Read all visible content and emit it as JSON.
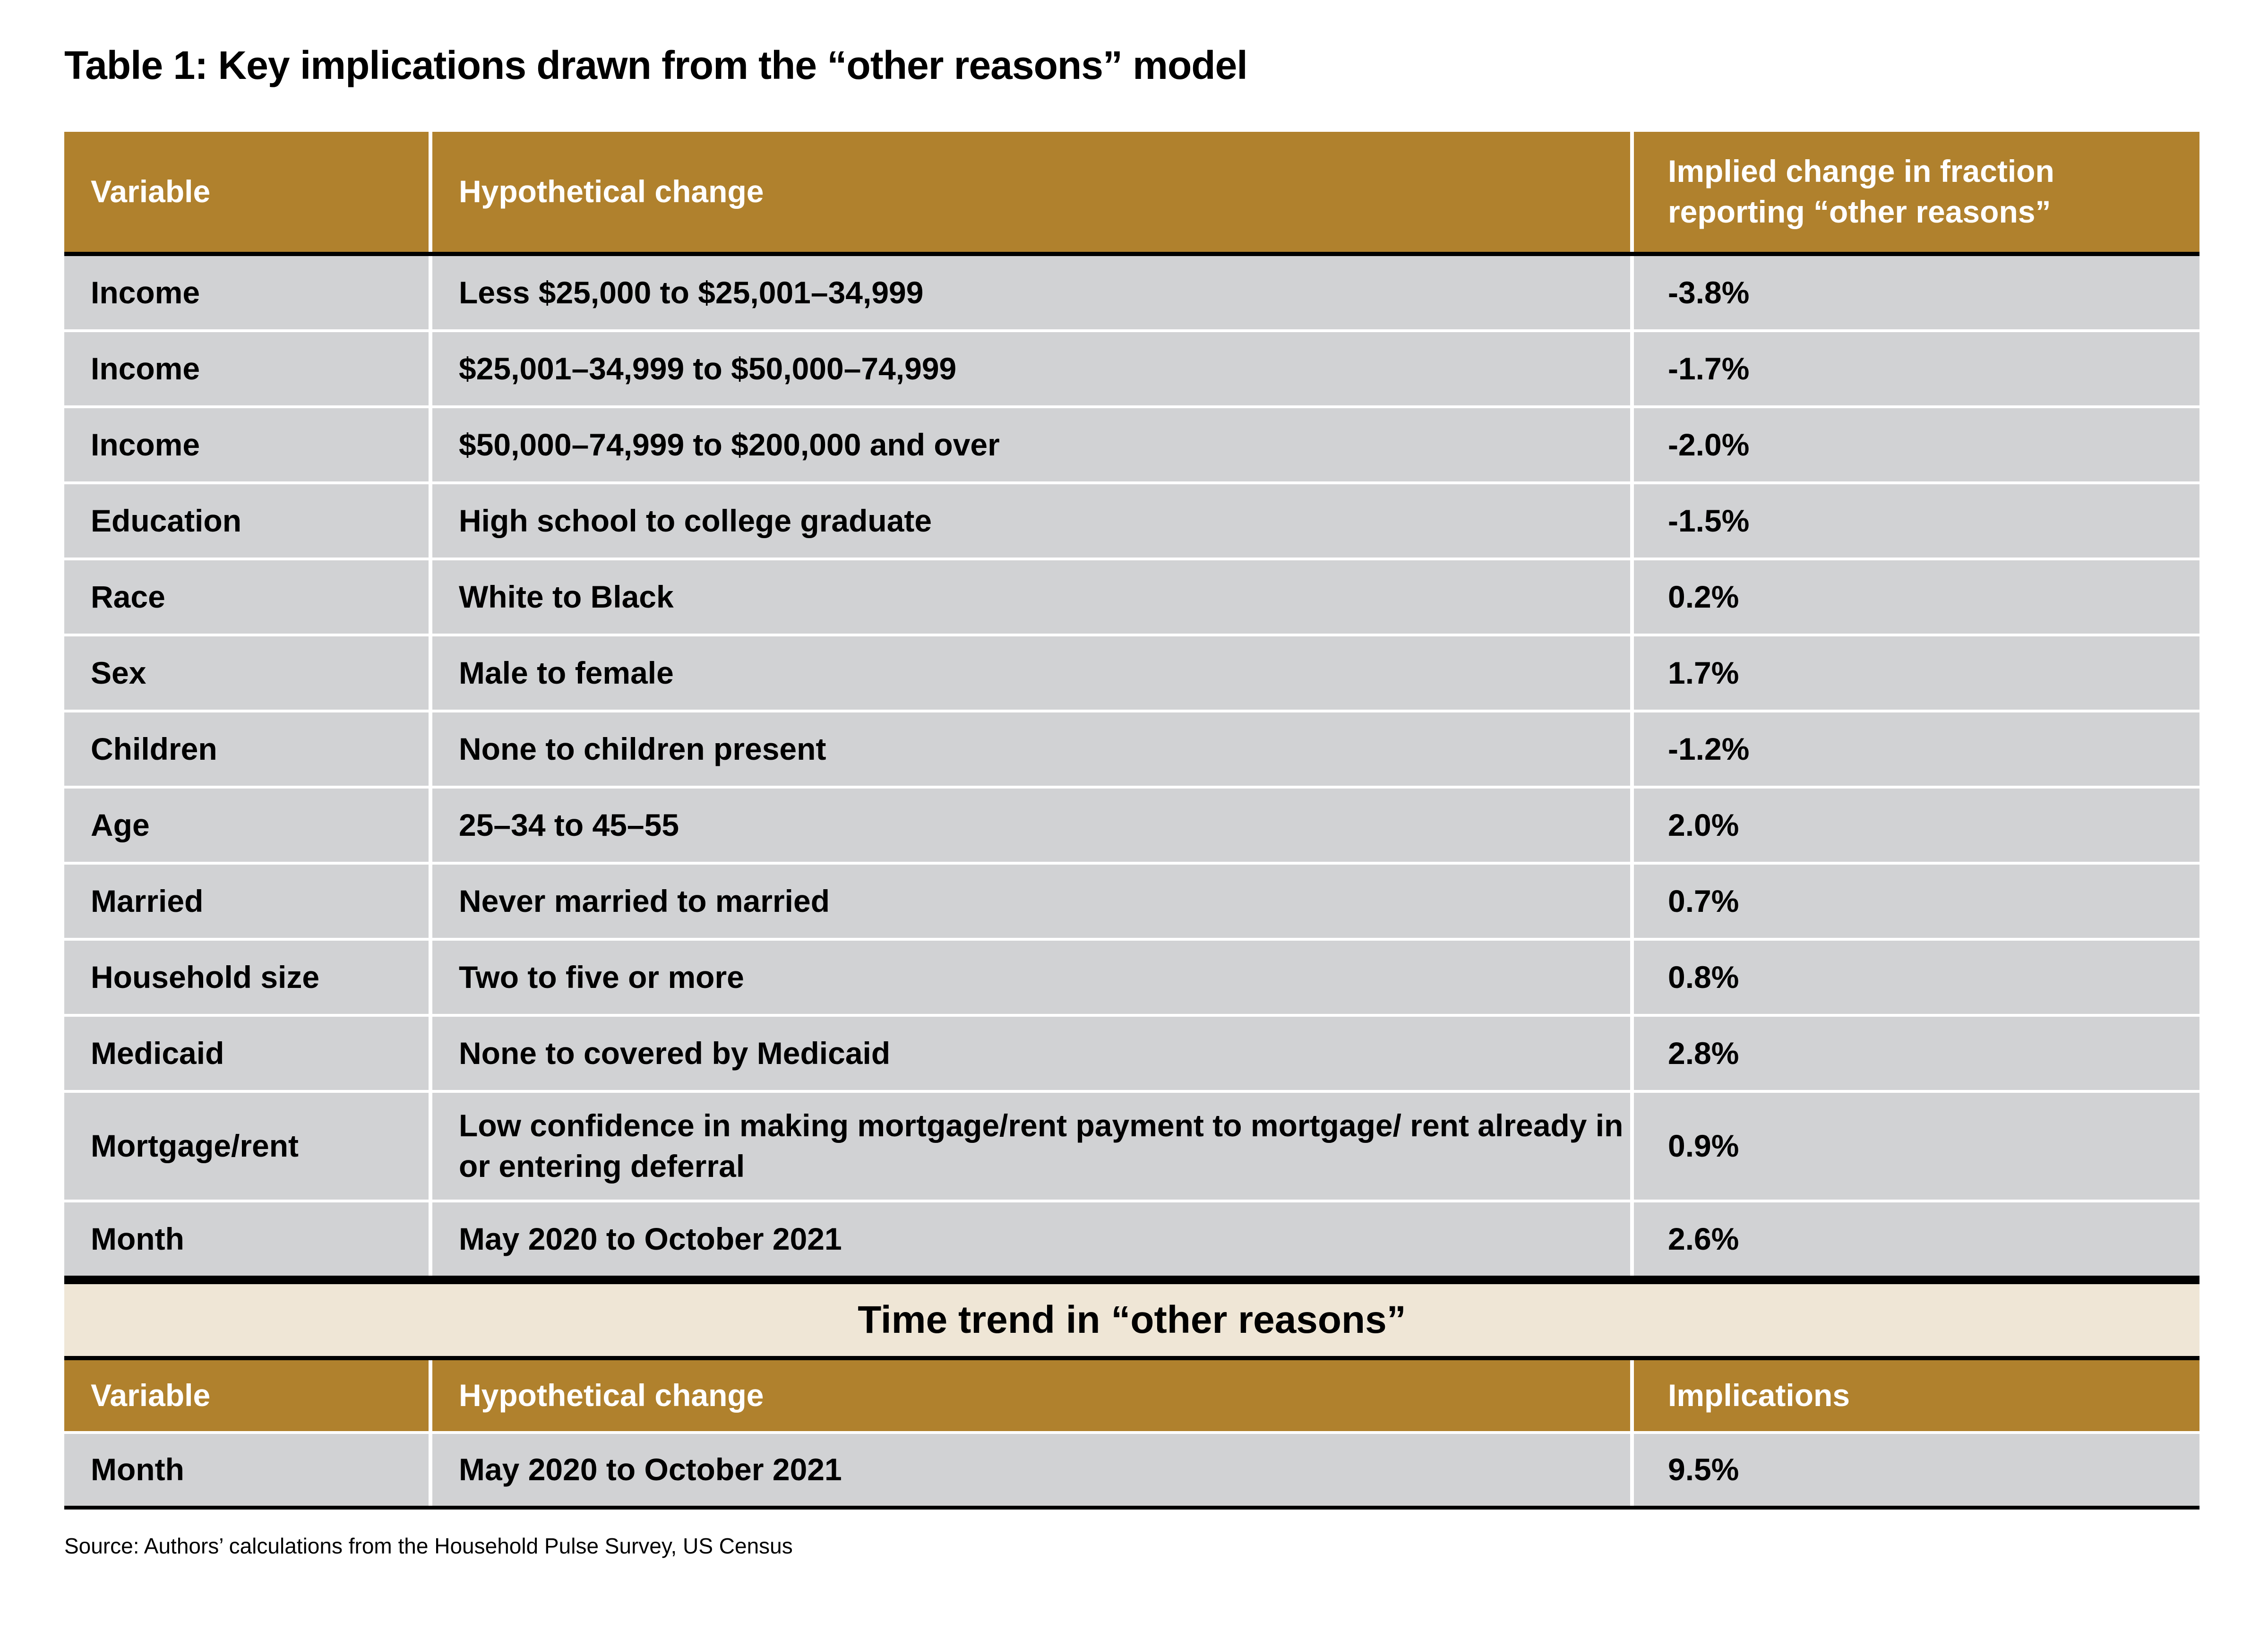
{
  "title": "Table 1: Key implications drawn from the “other reasons” model",
  "main_table": {
    "headers": [
      "Variable",
      "Hypothetical change",
      "Implied change in fraction reporting “other reasons”"
    ],
    "rows": [
      [
        "Income",
        "Less $25,000 to $25,001–34,999",
        "-3.8%"
      ],
      [
        "Income",
        "$25,001–34,999 to $50,000–74,999",
        "-1.7%"
      ],
      [
        "Income",
        "$50,000–74,999 to $200,000 and over",
        "-2.0%"
      ],
      [
        "Education",
        "High school to college graduate",
        "-1.5%"
      ],
      [
        "Race",
        "White to Black",
        "0.2%"
      ],
      [
        "Sex",
        "Male to female",
        "1.7%"
      ],
      [
        "Children",
        "None to children present",
        "-1.2%"
      ],
      [
        "Age",
        "25–34 to 45–55",
        "2.0%"
      ],
      [
        "Married",
        "Never married to married",
        "0.7%"
      ],
      [
        "Household size",
        "Two to five or more",
        "0.8%"
      ],
      [
        "Medicaid",
        "None to covered by Medicaid",
        "2.8%"
      ],
      [
        "Mortgage/rent",
        "Low confidence in making mortgage/rent payment to mortgage/ rent already in or entering deferral",
        "0.9%"
      ],
      [
        "Month",
        "May 2020 to October 2021",
        "2.6%"
      ]
    ]
  },
  "time_trend": {
    "title": "Time trend in “other reasons”",
    "headers": [
      "Variable",
      "Hypothetical change",
      "Implications"
    ],
    "rows": [
      [
        "Month",
        "May 2020 to October 2021",
        "9.5%"
      ]
    ]
  },
  "source": "Source: Authors’ calculations from the Household Pulse Survey, US Census",
  "colors": {
    "header": "#b0812d",
    "row": "#d1d2d4",
    "band": "#efe6d6"
  }
}
